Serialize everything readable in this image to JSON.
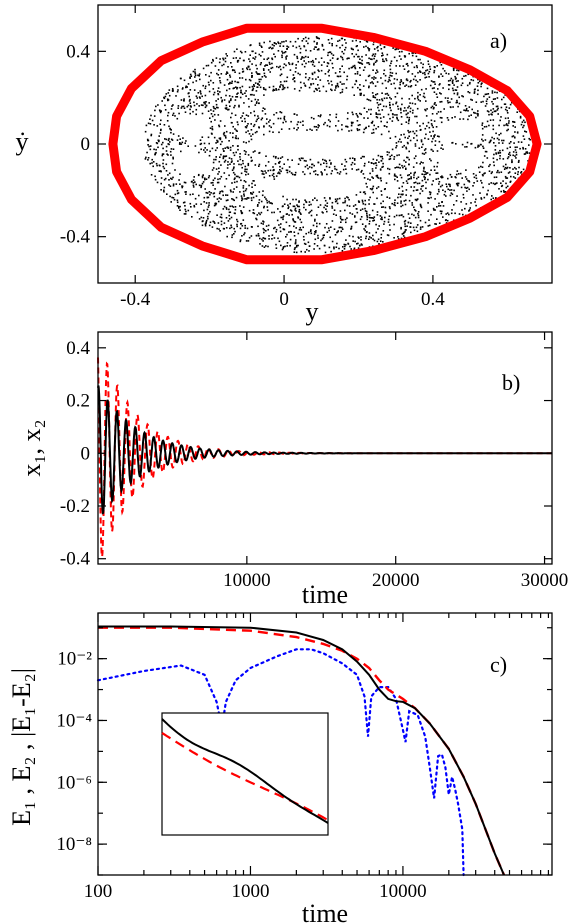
{
  "chart_data": [
    {
      "panel": "a)",
      "type": "scatter",
      "xlabel": "y",
      "ylabel": "ẏ",
      "xlim": [
        -0.5,
        0.72
      ],
      "ylim": [
        -0.6,
        0.6
      ],
      "x_ticks": [
        "-0.4",
        "0",
        "0.4"
      ],
      "x_tick_values": [
        -0.4,
        0,
        0.4
      ],
      "y_ticks": [
        "0.4",
        "0",
        "-0.4"
      ],
      "y_tick_values": [
        0.4,
        0,
        -0.4
      ],
      "colors": {
        "boundary": "#ff0000",
        "points": "#000000"
      },
      "series": [
        {
          "style": "thick-red-closed-curve",
          "points": [
            [
              0.68,
              0.0
            ],
            [
              0.66,
              0.12
            ],
            [
              0.6,
              0.23
            ],
            [
              0.5,
              0.32
            ],
            [
              0.38,
              0.4
            ],
            [
              0.24,
              0.46
            ],
            [
              0.1,
              0.5
            ],
            [
              0.0,
              0.5
            ],
            [
              -0.1,
              0.5
            ],
            [
              -0.22,
              0.44
            ],
            [
              -0.33,
              0.36
            ],
            [
              -0.41,
              0.24
            ],
            [
              -0.45,
              0.12
            ],
            [
              -0.46,
              0.0
            ],
            [
              -0.45,
              -0.12
            ],
            [
              -0.41,
              -0.24
            ],
            [
              -0.33,
              -0.36
            ],
            [
              -0.22,
              -0.44
            ],
            [
              -0.1,
              -0.5
            ],
            [
              0.0,
              -0.5
            ],
            [
              0.1,
              -0.5
            ],
            [
              0.24,
              -0.46
            ],
            [
              0.38,
              -0.4
            ],
            [
              0.5,
              -0.32
            ],
            [
              0.6,
              -0.23
            ],
            [
              0.66,
              -0.12
            ]
          ]
        },
        {
          "style": "black-dots-chaotic-sea",
          "region": {
            "x_range": [
              -0.38,
              0.66
            ],
            "y_range": [
              -0.47,
              0.47
            ]
          }
        }
      ]
    },
    {
      "panel": "b)",
      "type": "line",
      "xlabel": "time",
      "ylabel": "x₁, x₂",
      "xlim": [
        0,
        30500
      ],
      "ylim": [
        -0.42,
        0.46
      ],
      "x_ticks": [
        "10000",
        "20000",
        "30000"
      ],
      "x_tick_values": [
        10000,
        20000,
        30000
      ],
      "y_ticks": [
        "0.4",
        "0.2",
        "0",
        "-0.2",
        "-0.4"
      ],
      "y_tick_values": [
        0.4,
        0.2,
        0,
        -0.2,
        -0.4
      ],
      "series": [
        {
          "color": "#000000",
          "dash": "solid",
          "amplitude0": 0.26,
          "decay_time": 2600,
          "period": 620
        },
        {
          "color": "#ff0000",
          "dash": "dashed",
          "amplitude0": 0.44,
          "decay_time": 2400,
          "period": 680
        }
      ]
    },
    {
      "panel": "c)",
      "type": "line",
      "xlabel": "time",
      "ylabel": "E₁ , E₂ , |E₁-E₂|",
      "xscale": "log",
      "yscale": "log",
      "xlim": [
        100,
        95000
      ],
      "ylim": [
        1e-09,
        0.3
      ],
      "x_ticks": [
        "100",
        "1000",
        "10000"
      ],
      "x_tick_values": [
        100,
        1000,
        10000
      ],
      "y_ticks": [
        "10⁻²",
        "10⁻⁴",
        "10⁻⁶",
        "10⁻⁸"
      ],
      "y_tick_values": [
        0.01,
        0.0001,
        1e-06,
        1e-08
      ],
      "series": [
        {
          "color": "#000000",
          "dash": "solid",
          "points": [
            [
              100,
              0.11
            ],
            [
              300,
              0.11
            ],
            [
              1000,
              0.1
            ],
            [
              2000,
              0.07
            ],
            [
              3000,
              0.04
            ],
            [
              4000,
              0.02
            ],
            [
              5000,
              0.008
            ],
            [
              6000,
              0.003
            ],
            [
              7000,
              0.001
            ],
            [
              8000,
              0.0005
            ],
            [
              9000,
              0.00042
            ],
            [
              10000,
              0.0004
            ],
            [
              12000,
              0.00025
            ],
            [
              15000,
              8e-05
            ],
            [
              20000,
              1.2e-05
            ],
            [
              25000,
              1.5e-06
            ],
            [
              30000,
              2e-07
            ],
            [
              40000,
              5e-09
            ],
            [
              46000,
              8e-10
            ]
          ]
        },
        {
          "color": "#ff0000",
          "dash": "dashed",
          "points": [
            [
              100,
              0.1
            ],
            [
              300,
              0.1
            ],
            [
              1000,
              0.08
            ],
            [
              2000,
              0.05
            ],
            [
              3000,
              0.03
            ],
            [
              4000,
              0.018
            ],
            [
              5000,
              0.01
            ],
            [
              6000,
              0.005
            ],
            [
              7000,
              0.002
            ],
            [
              8000,
              0.001
            ],
            [
              10000,
              0.0005
            ],
            [
              12000,
              0.00025
            ],
            [
              15000,
              8e-05
            ],
            [
              20000,
              1.2e-05
            ],
            [
              25000,
              1.5e-06
            ],
            [
              30000,
              2e-07
            ],
            [
              40000,
              5e-09
            ],
            [
              46000,
              8e-10
            ]
          ]
        },
        {
          "color": "#0000ff",
          "dash": "dotted",
          "points": [
            [
              100,
              0.002
            ],
            [
              200,
              0.004
            ],
            [
              350,
              0.006
            ],
            [
              500,
              0.003
            ],
            [
              600,
              0.0004
            ],
            [
              650,
              6e-05
            ],
            [
              690,
              0.0004
            ],
            [
              800,
              0.002
            ],
            [
              1000,
              0.005
            ],
            [
              1500,
              0.012
            ],
            [
              2000,
              0.02
            ],
            [
              2500,
              0.02
            ],
            [
              3000,
              0.015
            ],
            [
              4000,
              0.007
            ],
            [
              5000,
              0.003
            ],
            [
              5600,
              0.0006
            ],
            [
              5900,
              3e-05
            ],
            [
              6200,
              0.0006
            ],
            [
              7000,
              0.0012
            ],
            [
              8000,
              0.0012
            ],
            [
              9000,
              0.0005
            ],
            [
              10000,
              5e-05
            ],
            [
              10400,
              2e-05
            ],
            [
              11000,
              0.0002
            ],
            [
              12500,
              0.00015
            ],
            [
              14000,
              3e-05
            ],
            [
              15000,
              3e-06
            ],
            [
              16000,
              3e-07
            ],
            [
              17000,
              7e-06
            ],
            [
              18000,
              8e-06
            ],
            [
              19000,
              3e-06
            ],
            [
              20000,
              4e-07
            ],
            [
              21000,
              1.5e-06
            ],
            [
              22000,
              6e-07
            ],
            [
              23000,
              2e-07
            ],
            [
              24500,
              3e-08
            ],
            [
              25000,
              1e-09
            ]
          ]
        }
      ],
      "inset": {
        "description": "zoomed view of black solid and red dashed curves"
      }
    }
  ]
}
